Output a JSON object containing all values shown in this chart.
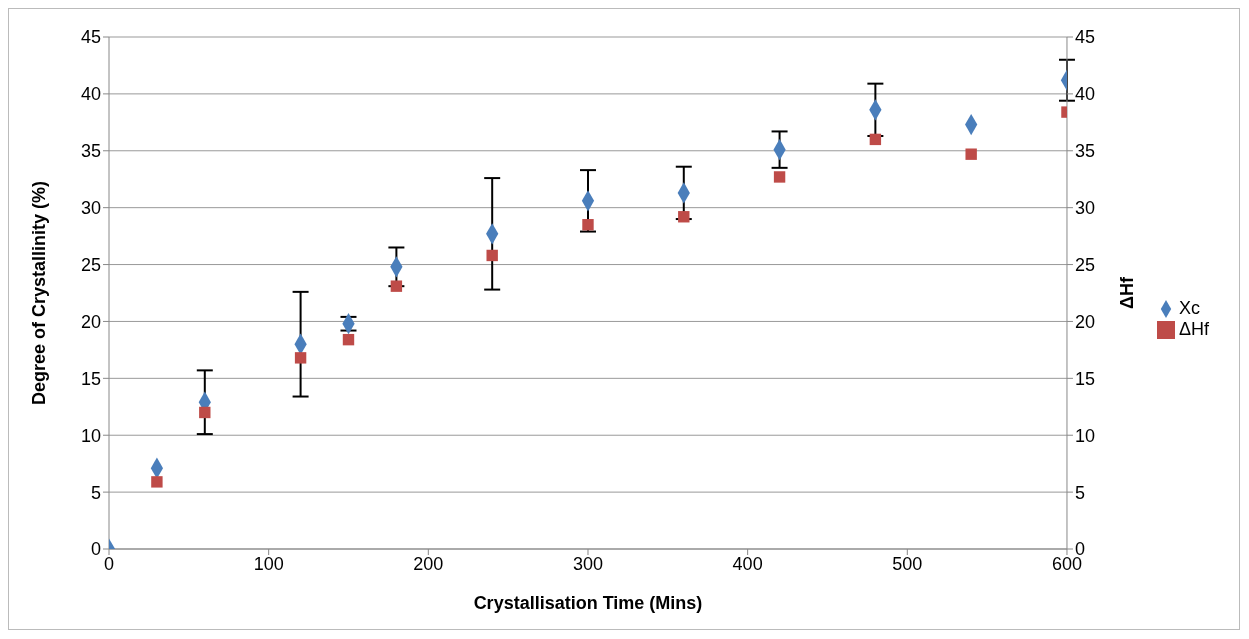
{
  "chart_data": {
    "type": "scatter",
    "xlabel": "Crystallisation Time (Mins)",
    "ylabel": "Degree of Crystallinity (%)",
    "y2label": "ΔHf",
    "x": [
      0,
      30,
      60,
      120,
      150,
      180,
      240,
      300,
      360,
      420,
      480,
      540,
      600
    ],
    "series": [
      {
        "name": "Xc",
        "color": "#4a7ebb",
        "marker": "diamond",
        "values": [
          0,
          7.1,
          12.9,
          18.0,
          19.8,
          24.8,
          27.7,
          30.6,
          31.3,
          35.1,
          38.6,
          37.3,
          41.2
        ],
        "errors": [
          null,
          null,
          2.8,
          4.6,
          0.6,
          1.7,
          4.9,
          2.7,
          2.3,
          1.6,
          2.3,
          null,
          1.8
        ]
      },
      {
        "name": "ΔHf",
        "color": "#be4b48",
        "marker": "square",
        "axis": "y2",
        "values": [
          null,
          5.9,
          12.0,
          16.8,
          18.4,
          23.1,
          25.8,
          28.5,
          29.2,
          32.7,
          36.0,
          34.7,
          38.4
        ]
      }
    ],
    "xlim": [
      0,
      600
    ],
    "xticks": [
      0,
      100,
      200,
      300,
      400,
      500,
      600
    ],
    "ylim": [
      0,
      45
    ],
    "yticks": [
      0,
      5,
      10,
      15,
      20,
      25,
      30,
      35,
      40,
      45
    ],
    "y2lim": [
      0,
      45
    ],
    "y2ticks": [
      0,
      5,
      10,
      15,
      20,
      25,
      30,
      35,
      40,
      45
    ],
    "grid": "y",
    "legend": "right"
  }
}
